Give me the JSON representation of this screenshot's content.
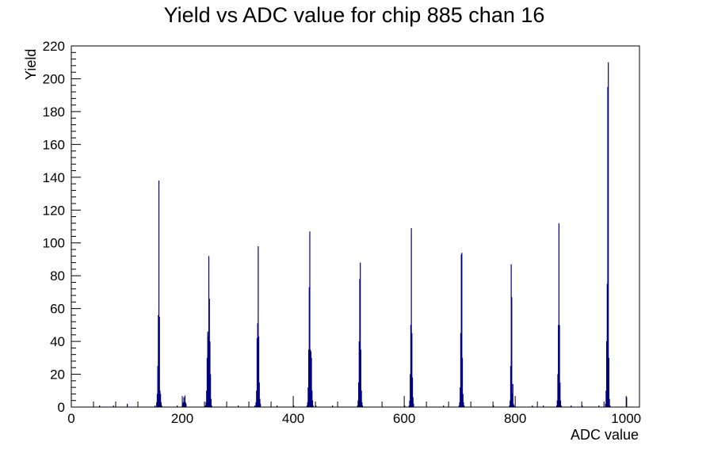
{
  "chart_data": {
    "type": "histogram",
    "title": "Yield vs ADC value for chip 885 chan 16",
    "xlabel": "ADC value",
    "ylabel": "Yield",
    "xlim": [
      0,
      1024
    ],
    "ylim": [
      0,
      220
    ],
    "x_ticks": [
      0,
      200,
      400,
      600,
      800,
      1000
    ],
    "y_ticks": [
      0,
      20,
      40,
      60,
      80,
      100,
      120,
      140,
      160,
      180,
      200,
      220
    ],
    "grid": false,
    "legend": "none",
    "line_color": "#000080",
    "bins": [
      {
        "x": 50,
        "y": 1
      },
      {
        "x": 75,
        "y": 1
      },
      {
        "x": 100,
        "y": 2
      },
      {
        "x": 150,
        "y": 1
      },
      {
        "x": 153,
        "y": 3
      },
      {
        "x": 154,
        "y": 8
      },
      {
        "x": 155,
        "y": 25
      },
      {
        "x": 156,
        "y": 56
      },
      {
        "x": 157,
        "y": 138
      },
      {
        "x": 158,
        "y": 55
      },
      {
        "x": 159,
        "y": 10
      },
      {
        "x": 160,
        "y": 8
      },
      {
        "x": 161,
        "y": 3
      },
      {
        "x": 162,
        "y": 1
      },
      {
        "x": 190,
        "y": 1
      },
      {
        "x": 199,
        "y": 1
      },
      {
        "x": 200,
        "y": 2
      },
      {
        "x": 201,
        "y": 3
      },
      {
        "x": 202,
        "y": 6
      },
      {
        "x": 203,
        "y": 3
      },
      {
        "x": 204,
        "y": 7
      },
      {
        "x": 205,
        "y": 3
      },
      {
        "x": 206,
        "y": 2
      },
      {
        "x": 241,
        "y": 1
      },
      {
        "x": 242,
        "y": 3
      },
      {
        "x": 243,
        "y": 10
      },
      {
        "x": 244,
        "y": 30
      },
      {
        "x": 245,
        "y": 46
      },
      {
        "x": 246,
        "y": 43
      },
      {
        "x": 247,
        "y": 92
      },
      {
        "x": 248,
        "y": 66
      },
      {
        "x": 249,
        "y": 40
      },
      {
        "x": 250,
        "y": 20
      },
      {
        "x": 251,
        "y": 5
      },
      {
        "x": 252,
        "y": 1
      },
      {
        "x": 300,
        "y": 1
      },
      {
        "x": 330,
        "y": 1
      },
      {
        "x": 332,
        "y": 3
      },
      {
        "x": 333,
        "y": 10
      },
      {
        "x": 334,
        "y": 42
      },
      {
        "x": 335,
        "y": 51
      },
      {
        "x": 336,
        "y": 98
      },
      {
        "x": 337,
        "y": 43
      },
      {
        "x": 338,
        "y": 15
      },
      {
        "x": 339,
        "y": 5
      },
      {
        "x": 340,
        "y": 2
      },
      {
        "x": 370,
        "y": 1
      },
      {
        "x": 400,
        "y": 1
      },
      {
        "x": 424,
        "y": 1
      },
      {
        "x": 425,
        "y": 3
      },
      {
        "x": 426,
        "y": 12
      },
      {
        "x": 427,
        "y": 35
      },
      {
        "x": 428,
        "y": 73
      },
      {
        "x": 429,
        "y": 107
      },
      {
        "x": 430,
        "y": 35
      },
      {
        "x": 431,
        "y": 34
      },
      {
        "x": 432,
        "y": 30
      },
      {
        "x": 433,
        "y": 10
      },
      {
        "x": 434,
        "y": 4
      },
      {
        "x": 435,
        "y": 1
      },
      {
        "x": 440,
        "y": 1
      },
      {
        "x": 470,
        "y": 1
      },
      {
        "x": 515,
        "y": 1
      },
      {
        "x": 516,
        "y": 4
      },
      {
        "x": 517,
        "y": 15
      },
      {
        "x": 518,
        "y": 40
      },
      {
        "x": 519,
        "y": 78
      },
      {
        "x": 520,
        "y": 88
      },
      {
        "x": 521,
        "y": 35
      },
      {
        "x": 522,
        "y": 10
      },
      {
        "x": 523,
        "y": 3
      },
      {
        "x": 524,
        "y": 1
      },
      {
        "x": 600,
        "y": 1
      },
      {
        "x": 608,
        "y": 1
      },
      {
        "x": 609,
        "y": 4
      },
      {
        "x": 610,
        "y": 20
      },
      {
        "x": 611,
        "y": 50
      },
      {
        "x": 612,
        "y": 109
      },
      {
        "x": 613,
        "y": 45
      },
      {
        "x": 614,
        "y": 18
      },
      {
        "x": 615,
        "y": 6
      },
      {
        "x": 616,
        "y": 2
      },
      {
        "x": 670,
        "y": 1
      },
      {
        "x": 698,
        "y": 1
      },
      {
        "x": 699,
        "y": 3
      },
      {
        "x": 700,
        "y": 12
      },
      {
        "x": 701,
        "y": 45
      },
      {
        "x": 702,
        "y": 93
      },
      {
        "x": 703,
        "y": 94
      },
      {
        "x": 704,
        "y": 30
      },
      {
        "x": 705,
        "y": 8
      },
      {
        "x": 706,
        "y": 3
      },
      {
        "x": 707,
        "y": 1
      },
      {
        "x": 760,
        "y": 1
      },
      {
        "x": 789,
        "y": 1
      },
      {
        "x": 790,
        "y": 4
      },
      {
        "x": 791,
        "y": 25
      },
      {
        "x": 792,
        "y": 87
      },
      {
        "x": 793,
        "y": 67
      },
      {
        "x": 794,
        "y": 8
      },
      {
        "x": 795,
        "y": 14
      },
      {
        "x": 796,
        "y": 2
      },
      {
        "x": 797,
        "y": 1
      },
      {
        "x": 830,
        "y": 1
      },
      {
        "x": 850,
        "y": 1
      },
      {
        "x": 874,
        "y": 1
      },
      {
        "x": 875,
        "y": 4
      },
      {
        "x": 876,
        "y": 20
      },
      {
        "x": 877,
        "y": 50
      },
      {
        "x": 878,
        "y": 112
      },
      {
        "x": 879,
        "y": 50
      },
      {
        "x": 880,
        "y": 15
      },
      {
        "x": 881,
        "y": 4
      },
      {
        "x": 882,
        "y": 1
      },
      {
        "x": 900,
        "y": 1
      },
      {
        "x": 920,
        "y": 1
      },
      {
        "x": 950,
        "y": 1
      },
      {
        "x": 962,
        "y": 2
      },
      {
        "x": 963,
        "y": 10
      },
      {
        "x": 964,
        "y": 40
      },
      {
        "x": 965,
        "y": 75
      },
      {
        "x": 966,
        "y": 195
      },
      {
        "x": 967,
        "y": 210
      },
      {
        "x": 968,
        "y": 30
      },
      {
        "x": 969,
        "y": 5
      },
      {
        "x": 970,
        "y": 1
      },
      {
        "x": 1000,
        "y": 6
      }
    ]
  }
}
